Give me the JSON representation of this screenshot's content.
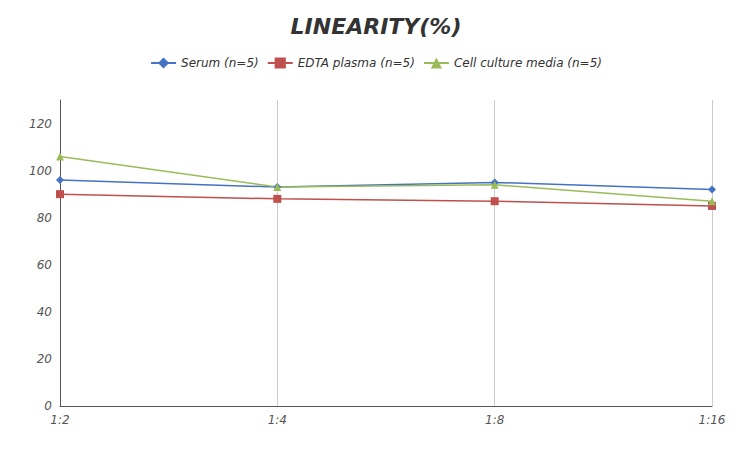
{
  "chart_data": {
    "type": "line",
    "title": "LINEARITY(%)",
    "categories": [
      "1:2",
      "1:4",
      "1:8",
      "1:16"
    ],
    "series": [
      {
        "name": "Serum (n=5)",
        "color": "#4472C4",
        "marker": "diamond",
        "values": [
          96,
          93,
          95,
          92
        ]
      },
      {
        "name": "EDTA plasma (n=5)",
        "color": "#C0504D",
        "marker": "square",
        "values": [
          90,
          88,
          87,
          85
        ]
      },
      {
        "name": "Cell culture media (n=5)",
        "color": "#9BBB59",
        "marker": "triangle",
        "values": [
          106,
          93,
          94,
          87
        ]
      }
    ],
    "ylim": [
      0,
      130
    ],
    "yticks": [
      0,
      20,
      40,
      60,
      80,
      100,
      120
    ],
    "grid": "x",
    "legend": "top"
  }
}
